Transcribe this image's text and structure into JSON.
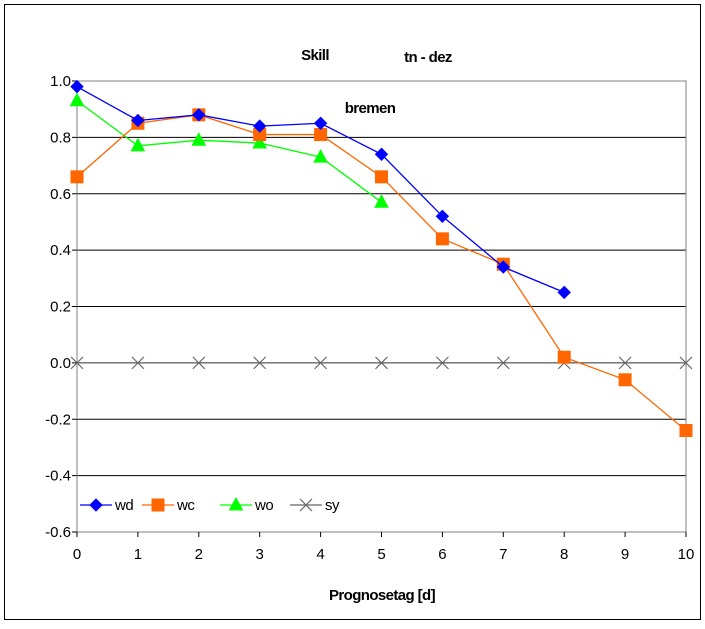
{
  "chart_data": {
    "type": "line",
    "title": "Skill",
    "subtitle": "tn - dez",
    "annotation": "bremen",
    "xlabel": "Prognosetag [d]",
    "ylabel": "",
    "x": [
      0,
      1,
      2,
      3,
      4,
      5,
      6,
      7,
      8,
      9,
      10
    ],
    "xlim": [
      0,
      10
    ],
    "ylim": [
      -0.6,
      1.0
    ],
    "x_ticks": [
      "0",
      "1",
      "2",
      "3",
      "4",
      "5",
      "6",
      "7",
      "8",
      "9",
      "10"
    ],
    "y_ticks": [
      "1.0",
      "0.8",
      "0.6",
      "0.4",
      "0.2",
      "0.0",
      "-0.2",
      "-0.4",
      "-0.6"
    ],
    "grid": "horizontal",
    "legend_position": "bottom-left",
    "series": [
      {
        "name": "wd",
        "color": "#0000FF",
        "marker": "diamond",
        "values": [
          0.98,
          0.86,
          0.88,
          0.84,
          0.85,
          0.74,
          0.52,
          0.34,
          0.25,
          null,
          null
        ]
      },
      {
        "name": "wc",
        "color": "#FF6600",
        "marker": "square",
        "values": [
          0.66,
          0.85,
          0.88,
          0.81,
          0.81,
          0.66,
          0.44,
          0.35,
          0.02,
          -0.06,
          -0.24
        ]
      },
      {
        "name": "wo",
        "color": "#00FF00",
        "marker": "triangle",
        "values": [
          0.93,
          0.77,
          0.79,
          0.78,
          0.73,
          0.57,
          null,
          null,
          null,
          null,
          null
        ]
      },
      {
        "name": "sy",
        "color": "#666666",
        "marker": "x",
        "values": [
          0.0,
          0.0,
          0.0,
          0.0,
          0.0,
          0.0,
          0.0,
          0.0,
          0.0,
          0.0,
          0.0
        ]
      }
    ]
  }
}
